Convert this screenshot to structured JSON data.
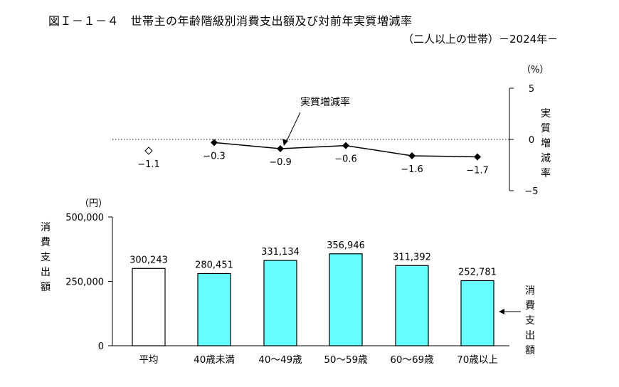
{
  "figure": {
    "title": "図Ｉ－１－４　世帯主の年齢階級別消費支出額及び対前年実質増減率",
    "subtitle": "（二人以上の世帯）－2024年－"
  },
  "chart_data": [
    {
      "type": "line",
      "categories": [
        "平均",
        "40歳未満",
        "40～49歳",
        "50～59歳",
        "60～69歳",
        "70歳以上"
      ],
      "average_point": {
        "category": "平均",
        "value": -1.1,
        "label": "−1.1",
        "marker": "open-diamond"
      },
      "series": [
        {
          "name": "実質増減率",
          "x": [
            "40歳未満",
            "40～49歳",
            "50～59歳",
            "60～69歳",
            "70歳以上"
          ],
          "values": [
            -0.3,
            -0.9,
            -0.6,
            -1.6,
            -1.7
          ],
          "marker": "filled-diamond"
        }
      ],
      "value_labels": [
        "−1.1",
        "−0.3",
        "−0.9",
        "−0.6",
        "−1.6",
        "−1.7"
      ],
      "annotation": "実質増減率",
      "y_axis": {
        "position": "right",
        "label": "実質増減率",
        "unit": "（%）",
        "ylim": [
          -5,
          5
        ],
        "ticks": [
          5,
          0,
          -5
        ],
        "tick_labels": [
          "5",
          "0",
          "−5"
        ],
        "zero_line": "dotted"
      }
    },
    {
      "type": "bar",
      "categories": [
        "平均",
        "40歳未満",
        "40～49歳",
        "50～59歳",
        "60～69歳",
        "70歳以上"
      ],
      "values": [
        300243,
        280451,
        331134,
        356946,
        311392,
        252781
      ],
      "value_labels": [
        "300,243",
        "280,451",
        "331,134",
        "356,946",
        "311,392",
        "252,781"
      ],
      "y_axis": {
        "label": "消費支出額",
        "unit": "（円）",
        "ylim": [
          0,
          500000
        ],
        "ticks": [
          0,
          250000,
          500000
        ],
        "tick_labels": [
          "0",
          "250,000",
          "500,000"
        ]
      },
      "legend": {
        "label": "消費支出額",
        "placement": "right"
      },
      "colors": {
        "average_bar": "#ffffff",
        "bar": "#66ffff",
        "outline": "#000000"
      },
      "grid": false
    }
  ]
}
